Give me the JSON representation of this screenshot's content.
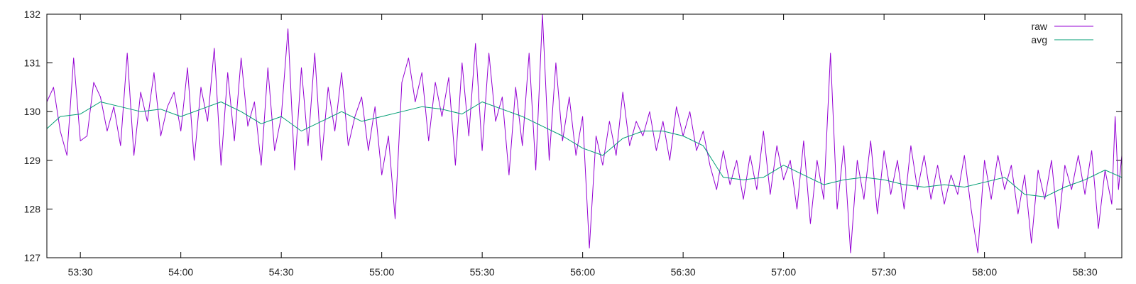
{
  "chart_data": {
    "type": "line",
    "title": "",
    "xlabel": "",
    "ylabel": "",
    "xlim": [
      "53:20",
      "58:41"
    ],
    "ylim": [
      127,
      132
    ],
    "grid": false,
    "legend_position": "top-right",
    "x_ticks": [
      "53:30",
      "54:00",
      "54:30",
      "55:00",
      "55:30",
      "56:00",
      "56:30",
      "57:00",
      "57:30",
      "58:00",
      "58:30"
    ],
    "y_ticks": [
      "127",
      "128",
      "129",
      "130",
      "131",
      "132"
    ],
    "series": [
      {
        "name": "raw",
        "color": "#9400d3",
        "points": [
          [
            "53:20",
            130.2
          ],
          [
            "53:22",
            130.5
          ],
          [
            "53:24",
            129.6
          ],
          [
            "53:26",
            129.1
          ],
          [
            "53:28",
            131.1
          ],
          [
            "53:30",
            129.4
          ],
          [
            "53:32",
            129.5
          ],
          [
            "53:34",
            130.6
          ],
          [
            "53:36",
            130.3
          ],
          [
            "53:38",
            129.6
          ],
          [
            "53:40",
            130.1
          ],
          [
            "53:42",
            129.3
          ],
          [
            "53:44",
            131.2
          ],
          [
            "53:46",
            129.1
          ],
          [
            "53:48",
            130.4
          ],
          [
            "53:50",
            129.8
          ],
          [
            "53:52",
            130.8
          ],
          [
            "53:54",
            129.5
          ],
          [
            "53:56",
            130.1
          ],
          [
            "53:58",
            130.4
          ],
          [
            "54:00",
            129.6
          ],
          [
            "54:02",
            130.9
          ],
          [
            "54:04",
            129.0
          ],
          [
            "54:06",
            130.5
          ],
          [
            "54:08",
            129.8
          ],
          [
            "54:10",
            131.3
          ],
          [
            "54:12",
            128.9
          ],
          [
            "54:14",
            130.8
          ],
          [
            "54:16",
            129.4
          ],
          [
            "54:18",
            131.1
          ],
          [
            "54:20",
            129.7
          ],
          [
            "54:22",
            130.2
          ],
          [
            "54:24",
            128.9
          ],
          [
            "54:26",
            130.9
          ],
          [
            "54:28",
            129.2
          ],
          [
            "54:30",
            129.9
          ],
          [
            "54:32",
            131.7
          ],
          [
            "54:34",
            128.8
          ],
          [
            "54:36",
            130.9
          ],
          [
            "54:38",
            129.3
          ],
          [
            "54:40",
            131.2
          ],
          [
            "54:42",
            129.0
          ],
          [
            "54:44",
            130.5
          ],
          [
            "54:46",
            129.6
          ],
          [
            "54:48",
            130.8
          ],
          [
            "54:50",
            129.3
          ],
          [
            "54:52",
            129.9
          ],
          [
            "54:54",
            130.3
          ],
          [
            "54:56",
            129.2
          ],
          [
            "54:58",
            130.1
          ],
          [
            "55:00",
            128.7
          ],
          [
            "55:02",
            129.5
          ],
          [
            "55:04",
            127.8
          ],
          [
            "55:06",
            130.6
          ],
          [
            "55:08",
            131.1
          ],
          [
            "55:10",
            130.2
          ],
          [
            "55:12",
            130.8
          ],
          [
            "55:14",
            129.4
          ],
          [
            "55:16",
            130.6
          ],
          [
            "55:18",
            129.9
          ],
          [
            "55:20",
            130.7
          ],
          [
            "55:22",
            128.9
          ],
          [
            "55:24",
            131.0
          ],
          [
            "55:26",
            129.5
          ],
          [
            "55:28",
            131.4
          ],
          [
            "55:30",
            129.2
          ],
          [
            "55:32",
            131.2
          ],
          [
            "55:34",
            129.8
          ],
          [
            "55:36",
            130.3
          ],
          [
            "55:38",
            128.7
          ],
          [
            "55:40",
            130.5
          ],
          [
            "55:42",
            129.3
          ],
          [
            "55:44",
            131.2
          ],
          [
            "55:46",
            128.8
          ],
          [
            "55:48",
            132.0
          ],
          [
            "55:50",
            129.0
          ],
          [
            "55:52",
            131.0
          ],
          [
            "55:54",
            129.4
          ],
          [
            "55:56",
            130.3
          ],
          [
            "55:58",
            129.1
          ],
          [
            "56:00",
            129.9
          ],
          [
            "56:02",
            127.2
          ],
          [
            "56:04",
            129.5
          ],
          [
            "56:06",
            128.9
          ],
          [
            "56:08",
            129.8
          ],
          [
            "56:10",
            129.1
          ],
          [
            "56:12",
            130.4
          ],
          [
            "56:14",
            129.3
          ],
          [
            "56:16",
            129.8
          ],
          [
            "56:18",
            129.5
          ],
          [
            "56:20",
            130.0
          ],
          [
            "56:22",
            129.2
          ],
          [
            "56:24",
            129.8
          ],
          [
            "56:26",
            129.0
          ],
          [
            "56:28",
            130.1
          ],
          [
            "56:30",
            129.5
          ],
          [
            "56:32",
            130.0
          ],
          [
            "56:34",
            129.2
          ],
          [
            "56:36",
            129.6
          ],
          [
            "56:38",
            128.9
          ],
          [
            "56:40",
            128.4
          ],
          [
            "56:42",
            129.2
          ],
          [
            "56:44",
            128.5
          ],
          [
            "56:46",
            129.0
          ],
          [
            "56:48",
            128.2
          ],
          [
            "56:50",
            129.1
          ],
          [
            "56:52",
            128.4
          ],
          [
            "56:54",
            129.6
          ],
          [
            "56:56",
            128.3
          ],
          [
            "56:58",
            129.3
          ],
          [
            "57:00",
            128.6
          ],
          [
            "57:02",
            129.0
          ],
          [
            "57:04",
            128.0
          ],
          [
            "57:06",
            129.4
          ],
          [
            "57:08",
            127.7
          ],
          [
            "57:10",
            129.0
          ],
          [
            "57:12",
            128.2
          ],
          [
            "57:14",
            131.2
          ],
          [
            "57:16",
            128.0
          ],
          [
            "57:18",
            129.3
          ],
          [
            "57:20",
            127.1
          ],
          [
            "57:22",
            129.0
          ],
          [
            "57:24",
            128.2
          ],
          [
            "57:26",
            129.4
          ],
          [
            "57:28",
            127.9
          ],
          [
            "57:30",
            129.2
          ],
          [
            "57:32",
            128.3
          ],
          [
            "57:34",
            129.0
          ],
          [
            "57:36",
            128.0
          ],
          [
            "57:38",
            129.3
          ],
          [
            "57:40",
            128.4
          ],
          [
            "57:42",
            129.1
          ],
          [
            "57:44",
            128.2
          ],
          [
            "57:46",
            128.9
          ],
          [
            "57:48",
            128.1
          ],
          [
            "57:50",
            128.7
          ],
          [
            "57:52",
            128.3
          ],
          [
            "57:54",
            129.1
          ],
          [
            "57:56",
            128.0
          ],
          [
            "57:58",
            127.1
          ],
          [
            "58:00",
            129.0
          ],
          [
            "58:02",
            128.2
          ],
          [
            "58:04",
            129.1
          ],
          [
            "58:06",
            128.4
          ],
          [
            "58:08",
            128.9
          ],
          [
            "58:10",
            127.9
          ],
          [
            "58:12",
            128.7
          ],
          [
            "58:14",
            127.3
          ],
          [
            "58:16",
            128.8
          ],
          [
            "58:18",
            128.2
          ],
          [
            "58:20",
            129.0
          ],
          [
            "58:22",
            127.6
          ],
          [
            "58:24",
            128.9
          ],
          [
            "58:26",
            128.4
          ],
          [
            "58:28",
            129.1
          ],
          [
            "58:30",
            128.3
          ],
          [
            "58:32",
            129.2
          ],
          [
            "58:34",
            127.6
          ],
          [
            "58:36",
            128.8
          ],
          [
            "58:38",
            128.1
          ],
          [
            "58:39",
            129.9
          ],
          [
            "58:40",
            128.4
          ],
          [
            "58:41",
            129.1
          ]
        ]
      },
      {
        "name": "avg",
        "color": "#009e73",
        "points": [
          [
            "53:20",
            129.65
          ],
          [
            "53:24",
            129.9
          ],
          [
            "53:30",
            129.95
          ],
          [
            "53:36",
            130.2
          ],
          [
            "53:42",
            130.1
          ],
          [
            "53:48",
            130.0
          ],
          [
            "53:54",
            130.05
          ],
          [
            "54:00",
            129.9
          ],
          [
            "54:06",
            130.05
          ],
          [
            "54:12",
            130.2
          ],
          [
            "54:18",
            130.0
          ],
          [
            "54:24",
            129.75
          ],
          [
            "54:30",
            129.9
          ],
          [
            "54:36",
            129.6
          ],
          [
            "54:42",
            129.8
          ],
          [
            "54:48",
            130.0
          ],
          [
            "54:54",
            129.8
          ],
          [
            "55:00",
            129.9
          ],
          [
            "55:06",
            130.0
          ],
          [
            "55:12",
            130.1
          ],
          [
            "55:18",
            130.05
          ],
          [
            "55:24",
            129.95
          ],
          [
            "55:30",
            130.2
          ],
          [
            "55:36",
            130.05
          ],
          [
            "55:42",
            129.9
          ],
          [
            "55:48",
            129.7
          ],
          [
            "55:54",
            129.5
          ],
          [
            "56:00",
            129.25
          ],
          [
            "56:06",
            129.1
          ],
          [
            "56:12",
            129.45
          ],
          [
            "56:18",
            129.6
          ],
          [
            "56:24",
            129.6
          ],
          [
            "56:30",
            129.5
          ],
          [
            "56:36",
            129.3
          ],
          [
            "56:42",
            128.65
          ],
          [
            "56:48",
            128.6
          ],
          [
            "56:54",
            128.65
          ],
          [
            "57:00",
            128.9
          ],
          [
            "57:06",
            128.7
          ],
          [
            "57:12",
            128.5
          ],
          [
            "57:18",
            128.6
          ],
          [
            "57:24",
            128.65
          ],
          [
            "57:30",
            128.6
          ],
          [
            "57:36",
            128.5
          ],
          [
            "57:42",
            128.45
          ],
          [
            "57:48",
            128.5
          ],
          [
            "57:54",
            128.45
          ],
          [
            "58:00",
            128.55
          ],
          [
            "58:06",
            128.65
          ],
          [
            "58:12",
            128.3
          ],
          [
            "58:18",
            128.25
          ],
          [
            "58:24",
            128.45
          ],
          [
            "58:30",
            128.6
          ],
          [
            "58:36",
            128.8
          ],
          [
            "58:41",
            128.65
          ]
        ]
      }
    ]
  }
}
